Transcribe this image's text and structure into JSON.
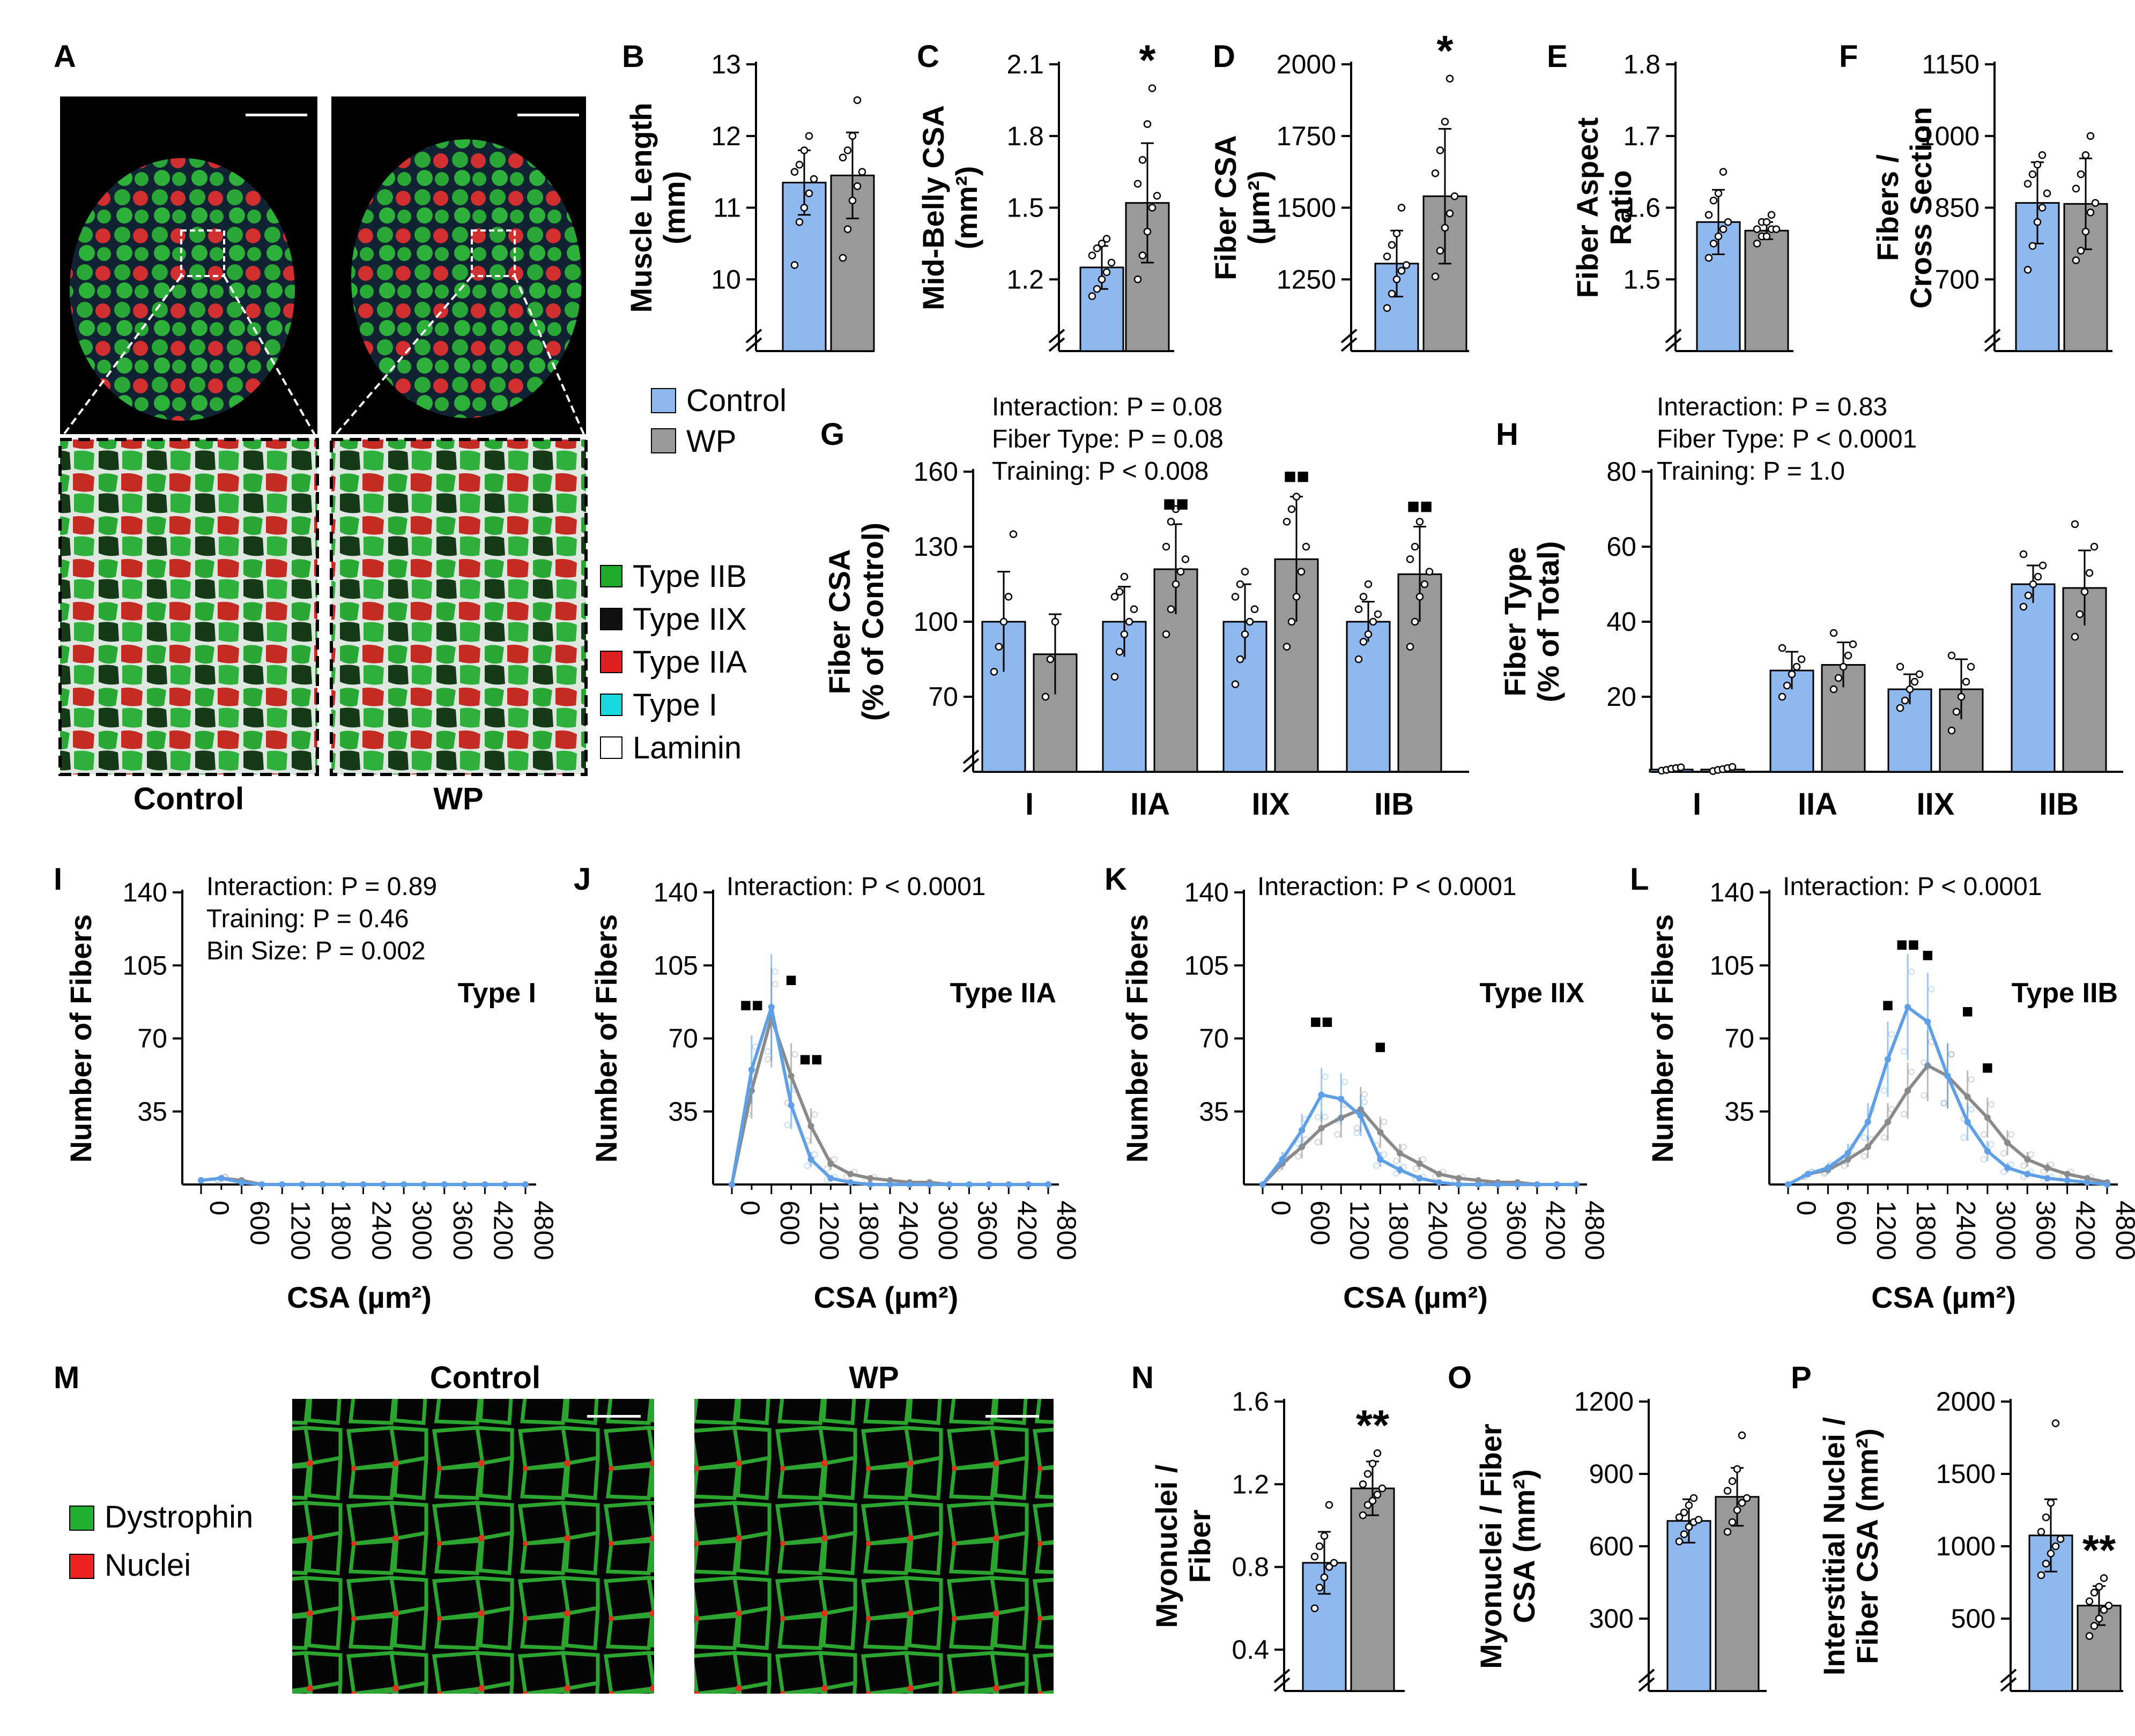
{
  "colors": {
    "control": "#8fb8ef",
    "wp": "#999999",
    "control_line": "#5f9fe6",
    "wp_line": "#8a8a8a",
    "type_iib": "#1faa2a",
    "type_iix": "#111111",
    "type_iia": "#e02020",
    "type_i": "#18d8e0",
    "laminin": "#ffffff",
    "dystrophin": "#22b030",
    "nuclei": "#ee2222"
  },
  "labels": {
    "A": "A",
    "B": "B",
    "C": "C",
    "D": "D",
    "E": "E",
    "F": "F",
    "G": "G",
    "H": "H",
    "I": "I",
    "J": "J",
    "K": "K",
    "L": "L",
    "M": "M",
    "N": "N",
    "O": "O",
    "P": "P"
  },
  "panel_a": {
    "control_label": "Control",
    "wp_label": "WP"
  },
  "legend_groups": {
    "control": "Control",
    "wp": "WP"
  },
  "legend_fiber": [
    "Type IIB",
    "Type IIX",
    "Type IIA",
    "Type I",
    "Laminin"
  ],
  "panel_m": {
    "control_label": "Control",
    "wp_label": "WP",
    "legend": [
      "Dystrophin",
      "Nuclei"
    ]
  },
  "chart_data": [
    {
      "id": "B",
      "type": "bar",
      "ylabel": "Muscle Length (mm)",
      "ylim": [
        9,
        13
      ],
      "ticks": [
        "10",
        "11",
        "12",
        "13"
      ],
      "tick_values": [
        10,
        11,
        12,
        13
      ],
      "categories": [
        "Control",
        "WP"
      ],
      "values": [
        11.35,
        11.45
      ],
      "errors": [
        0.45,
        0.6
      ],
      "significance": "",
      "points": [
        [
          10.2,
          10.8,
          11.0,
          11.2,
          11.4,
          11.5,
          11.6,
          11.8,
          12.0
        ],
        [
          10.3,
          10.7,
          11.1,
          11.3,
          11.5,
          11.7,
          11.8,
          12.0,
          12.5
        ]
      ]
    },
    {
      "id": "C",
      "type": "bar",
      "ylabel": "Mid-Belly CSA (mm²)",
      "ylim": [
        0.9,
        2.1
      ],
      "ticks": [
        "1.2",
        "1.5",
        "1.8",
        "2.1"
      ],
      "tick_values": [
        1.2,
        1.5,
        1.8,
        2.1
      ],
      "categories": [
        "Control",
        "WP"
      ],
      "values": [
        1.25,
        1.52
      ],
      "errors": [
        0.09,
        0.25
      ],
      "significance": "*",
      "points": [
        [
          1.13,
          1.16,
          1.2,
          1.23,
          1.27,
          1.3,
          1.33,
          1.35,
          1.37
        ],
        [
          1.2,
          1.3,
          1.4,
          1.5,
          1.55,
          1.6,
          1.7,
          1.85,
          2.0
        ]
      ]
    },
    {
      "id": "D",
      "type": "bar",
      "ylabel": "Fiber CSA (µm²)",
      "ylim": [
        1000,
        2000
      ],
      "ticks": [
        "1250",
        "1500",
        "1750",
        "2000"
      ],
      "tick_values": [
        1250,
        1500,
        1750,
        2000
      ],
      "categories": [
        "Control",
        "WP"
      ],
      "values": [
        1305,
        1540
      ],
      "errors": [
        115,
        235
      ],
      "significance": "*",
      "points": [
        [
          1150,
          1200,
          1250,
          1280,
          1300,
          1330,
          1370,
          1410,
          1500
        ],
        [
          1260,
          1350,
          1430,
          1480,
          1540,
          1620,
          1700,
          1800,
          1950
        ]
      ]
    },
    {
      "id": "E",
      "type": "bar",
      "ylabel": "Fiber Aspect Ratio",
      "ylim": [
        1.4,
        1.8
      ],
      "ticks": [
        "1.5",
        "1.6",
        "1.7",
        "1.8"
      ],
      "tick_values": [
        1.5,
        1.6,
        1.7,
        1.8
      ],
      "categories": [
        "Control",
        "WP"
      ],
      "values": [
        1.58,
        1.568
      ],
      "errors": [
        0.045,
        0.012
      ],
      "significance": "",
      "points": [
        [
          1.53,
          1.55,
          1.56,
          1.57,
          1.58,
          1.59,
          1.61,
          1.62,
          1.65
        ],
        [
          1.55,
          1.56,
          1.56,
          1.57,
          1.57,
          1.57,
          1.58,
          1.58,
          1.59
        ]
      ]
    },
    {
      "id": "F",
      "type": "bar",
      "ylabel": "Fibers / Cross Section",
      "ylim": [
        550,
        1150
      ],
      "ticks": [
        "700",
        "850",
        "1000",
        "1150"
      ],
      "tick_values": [
        700,
        850,
        1000,
        1150
      ],
      "categories": [
        "Control",
        "WP"
      ],
      "values": [
        860,
        858
      ],
      "errors": [
        85,
        95
      ],
      "significance": "",
      "points": [
        [
          720,
          770,
          820,
          850,
          880,
          900,
          920,
          940,
          960
        ],
        [
          740,
          760,
          800,
          840,
          860,
          890,
          920,
          960,
          1000
        ]
      ]
    },
    {
      "id": "G",
      "type": "bar",
      "ylabel": "Fiber CSA (% of Control)",
      "ylim": [
        40,
        160
      ],
      "ticks": [
        "70",
        "100",
        "130",
        "160"
      ],
      "tick_values": [
        70,
        100,
        130,
        160
      ],
      "categories": [
        "I",
        "IIA",
        "IIX",
        "IIB"
      ],
      "stats": [
        "Interaction: P = 0.08",
        "Fiber Type: P = 0.08",
        "Training: P < 0.008"
      ],
      "series": [
        {
          "name": "Control",
          "values": [
            100,
            100,
            100,
            100
          ],
          "errors": [
            20,
            14,
            15,
            8
          ]
        },
        {
          "name": "WP",
          "values": [
            87,
            121,
            125,
            119
          ],
          "errors": [
            16,
            18,
            25,
            19
          ]
        }
      ],
      "significance": [
        "",
        "■■",
        "■■",
        "■■"
      ],
      "points_control": [
        [
          80,
          90,
          100,
          110,
          135
        ],
        [
          78,
          88,
          95,
          100,
          105,
          110,
          112,
          118
        ],
        [
          75,
          85,
          95,
          100,
          105,
          110,
          115,
          120
        ],
        [
          85,
          92,
          95,
          100,
          103,
          105,
          110,
          115
        ]
      ],
      "points_wp": [
        [
          70,
          85,
          100
        ],
        [
          95,
          105,
          115,
          120,
          125,
          130,
          140,
          145
        ],
        [
          90,
          100,
          110,
          120,
          130,
          140,
          145,
          150
        ],
        [
          90,
          100,
          110,
          115,
          120,
          125,
          130,
          140
        ]
      ]
    },
    {
      "id": "H",
      "type": "bar",
      "ylabel": "Fiber Type (% of Total)",
      "ylim": [
        0,
        80
      ],
      "ticks": [
        "20",
        "40",
        "60",
        "80"
      ],
      "tick_values": [
        20,
        40,
        60,
        80
      ],
      "categories": [
        "I",
        "IIA",
        "IIX",
        "IIB"
      ],
      "stats": [
        "Interaction: P = 0.83",
        "Fiber Type: P < 0.0001",
        "Training: P = 1.0"
      ],
      "series": [
        {
          "name": "Control",
          "values": [
            0.6,
            27,
            22,
            50
          ],
          "errors": [
            0.5,
            5,
            4,
            5
          ]
        },
        {
          "name": "WP",
          "values": [
            0.6,
            28.5,
            22,
            49
          ],
          "errors": [
            0.5,
            6,
            8,
            10
          ]
        }
      ],
      "significance": [
        "",
        "",
        "",
        ""
      ],
      "points_control": [
        [
          0.3,
          0.5,
          0.8,
          1,
          1.2
        ],
        [
          20,
          23,
          26,
          28,
          30,
          33
        ],
        [
          17,
          19,
          22,
          24,
          26,
          28
        ],
        [
          44,
          47,
          50,
          52,
          55,
          58
        ]
      ],
      "points_wp": [
        [
          0.2,
          0.5,
          0.7,
          1,
          1.3
        ],
        [
          22,
          25,
          28,
          31,
          34,
          37
        ],
        [
          11,
          16,
          20,
          24,
          28,
          31
        ],
        [
          36,
          42,
          48,
          53,
          60,
          66
        ]
      ]
    },
    {
      "id": "I",
      "type": "line",
      "title": "Type I",
      "xlabel": "CSA (µm²)",
      "ylabel": "Number of Fibers",
      "ylim": [
        0,
        140
      ],
      "xlim": [
        -200,
        4900
      ],
      "stats": [
        "Interaction: P = 0.89",
        "Training: P = 0.46",
        "Bin Size: P = 0.002"
      ],
      "yticks": [
        "35",
        "70",
        "105",
        "140"
      ],
      "ytick_values": [
        35,
        70,
        105,
        140
      ],
      "xticks": [
        "0",
        "600",
        "1200",
        "1800",
        "2400",
        "3000",
        "3600",
        "4200",
        "4800"
      ],
      "xtick_values": [
        0,
        600,
        1200,
        1800,
        2400,
        3000,
        3600,
        4200,
        4800
      ],
      "x": [
        0,
        300,
        600,
        900,
        1200,
        1500,
        1800,
        2100,
        2400,
        2700,
        3000,
        3300,
        3600,
        3900,
        4200,
        4500,
        4800
      ],
      "series": [
        {
          "name": "WP",
          "values": [
            2,
            3,
            2,
            0,
            0,
            0,
            0,
            0,
            0,
            0,
            0,
            0,
            0,
            0,
            0,
            0,
            0
          ]
        },
        {
          "name": "Control",
          "values": [
            2,
            3,
            1,
            0,
            0,
            0,
            0,
            0,
            0,
            0,
            0,
            0,
            0,
            0,
            0,
            0,
            0
          ]
        }
      ],
      "significance": []
    },
    {
      "id": "J",
      "type": "line",
      "title": "Type IIA",
      "xlabel": "CSA (µm²)",
      "ylabel": "Number of Fibers",
      "ylim": [
        0,
        140
      ],
      "xlim": [
        -200,
        4900
      ],
      "stats": [
        "Interaction: P < 0.0001"
      ],
      "yticks": [
        "35",
        "70",
        "105",
        "140"
      ],
      "ytick_values": [
        35,
        70,
        105,
        140
      ],
      "xticks": [
        "0",
        "600",
        "1200",
        "1800",
        "2400",
        "3000",
        "3600",
        "4200",
        "4800"
      ],
      "xtick_values": [
        0,
        600,
        1200,
        1800,
        2400,
        3000,
        3600,
        4200,
        4800
      ],
      "x": [
        0,
        300,
        600,
        900,
        1200,
        1500,
        1800,
        2100,
        2400,
        2700,
        3000,
        3300,
        3600,
        3900,
        4200,
        4500,
        4800
      ],
      "series": [
        {
          "name": "WP",
          "values": [
            0,
            45,
            80,
            52,
            28,
            10,
            5,
            3,
            2,
            1,
            1,
            0,
            0,
            0,
            0,
            0,
            0
          ]
        },
        {
          "name": "Control",
          "values": [
            0,
            55,
            85,
            38,
            12,
            3,
            1,
            0,
            0,
            0,
            0,
            0,
            0,
            0,
            0,
            0,
            0
          ]
        }
      ],
      "significance": [
        {
          "x": 300,
          "y": 83,
          "label": "■■"
        },
        {
          "x": 900,
          "y": 95,
          "label": "■"
        },
        {
          "x": 1200,
          "y": 57,
          "label": "■■"
        }
      ]
    },
    {
      "id": "K",
      "type": "line",
      "title": "Type IIX",
      "xlabel": "CSA (µm²)",
      "ylabel": "Number of Fibers",
      "ylim": [
        0,
        140
      ],
      "xlim": [
        -200,
        4900
      ],
      "stats": [
        "Interaction: P < 0.0001"
      ],
      "yticks": [
        "35",
        "70",
        "105",
        "140"
      ],
      "ytick_values": [
        35,
        70,
        105,
        140
      ],
      "xticks": [
        "0",
        "600",
        "1200",
        "1800",
        "2400",
        "3000",
        "3600",
        "4200",
        "4800"
      ],
      "xtick_values": [
        0,
        600,
        1200,
        1800,
        2400,
        3000,
        3600,
        4200,
        4800
      ],
      "x": [
        0,
        300,
        600,
        900,
        1200,
        1500,
        1800,
        2100,
        2400,
        2700,
        3000,
        3300,
        3600,
        3900,
        4200,
        4500,
        4800
      ],
      "series": [
        {
          "name": "WP",
          "values": [
            0,
            10,
            18,
            27,
            32,
            36,
            25,
            15,
            10,
            5,
            3,
            2,
            1,
            1,
            0,
            0,
            0
          ]
        },
        {
          "name": "Control",
          "values": [
            0,
            12,
            26,
            43,
            41,
            33,
            12,
            7,
            3,
            1,
            0,
            0,
            0,
            0,
            0,
            0,
            0
          ]
        }
      ],
      "significance": [
        {
          "x": 900,
          "y": 75,
          "label": "■■"
        },
        {
          "x": 1800,
          "y": 63,
          "label": "■"
        }
      ]
    },
    {
      "id": "L",
      "type": "line",
      "title": "Type IIB",
      "xlabel": "CSA (µm²)",
      "ylabel": "Number of Fibers",
      "ylim": [
        0,
        140
      ],
      "xlim": [
        -200,
        4900
      ],
      "stats": [
        "Interaction: P < 0.0001"
      ],
      "yticks": [
        "35",
        "70",
        "105",
        "140"
      ],
      "ytick_values": [
        35,
        70,
        105,
        140
      ],
      "xticks": [
        "0",
        "600",
        "1200",
        "1800",
        "2400",
        "3000",
        "3600",
        "4200",
        "4800"
      ],
      "xtick_values": [
        0,
        600,
        1200,
        1800,
        2400,
        3000,
        3600,
        4200,
        4800
      ],
      "x": [
        0,
        300,
        600,
        900,
        1200,
        1500,
        1800,
        2100,
        2400,
        2700,
        3000,
        3300,
        3600,
        3900,
        4200,
        4500,
        4800
      ],
      "series": [
        {
          "name": "WP",
          "values": [
            0,
            5,
            7,
            12,
            18,
            30,
            45,
            57,
            52,
            42,
            32,
            20,
            12,
            8,
            5,
            3,
            1
          ]
        },
        {
          "name": "Control",
          "values": [
            0,
            5,
            8,
            15,
            30,
            60,
            85,
            78,
            52,
            30,
            16,
            8,
            5,
            3,
            2,
            1,
            0
          ]
        }
      ],
      "significance": [
        {
          "x": 1500,
          "y": 83,
          "label": "■"
        },
        {
          "x": 1800,
          "y": 112,
          "label": "■■"
        },
        {
          "x": 2100,
          "y": 107,
          "label": "■"
        },
        {
          "x": 2700,
          "y": 80,
          "label": "■"
        },
        {
          "x": 3000,
          "y": 53,
          "label": "■"
        }
      ]
    },
    {
      "id": "N",
      "type": "bar",
      "ylabel": "Myonuclei / Fiber",
      "ylim": [
        0.2,
        1.6
      ],
      "ticks": [
        "0.4",
        "0.8",
        "1.2",
        "1.6"
      ],
      "tick_values": [
        0.4,
        0.8,
        1.2,
        1.6
      ],
      "categories": [
        "Control",
        "WP"
      ],
      "values": [
        0.82,
        1.18
      ],
      "errors": [
        0.15,
        0.13
      ],
      "significance": "**",
      "points": [
        [
          0.6,
          0.7,
          0.75,
          0.8,
          0.82,
          0.85,
          0.9,
          0.95,
          1.1
        ],
        [
          1.05,
          1.1,
          1.12,
          1.15,
          1.18,
          1.2,
          1.25,
          1.3,
          1.35
        ]
      ]
    },
    {
      "id": "O",
      "type": "bar",
      "ylabel": "Myonuclei / Fiber CSA (mm²)",
      "ylim": [
        0,
        1200
      ],
      "ticks": [
        "300",
        "600",
        "900",
        "1200"
      ],
      "tick_values": [
        300,
        600,
        900,
        1200
      ],
      "categories": [
        "Control",
        "WP"
      ],
      "values": [
        705,
        805
      ],
      "errors": [
        90,
        120
      ],
      "significance": "",
      "points": [
        [
          620,
          650,
          680,
          700,
          710,
          720,
          740,
          770,
          800
        ],
        [
          660,
          700,
          750,
          780,
          800,
          830,
          870,
          920,
          1060
        ]
      ]
    },
    {
      "id": "P",
      "type": "bar",
      "ylabel": "Interstitial Nuclei / Fiber CSA (mm²)",
      "ylim": [
        0,
        2000
      ],
      "ticks": [
        "500",
        "1000",
        "1500",
        "2000"
      ],
      "tick_values": [
        500,
        1000,
        1500,
        2000
      ],
      "categories": [
        "Control",
        "WP"
      ],
      "values": [
        1075,
        590
      ],
      "errors": [
        250,
        135
      ],
      "significance": "**",
      "points": [
        [
          800,
          880,
          950,
          1000,
          1050,
          1100,
          1200,
          1300,
          1850
        ],
        [
          380,
          450,
          500,
          560,
          590,
          620,
          680,
          720,
          780
        ]
      ]
    }
  ]
}
